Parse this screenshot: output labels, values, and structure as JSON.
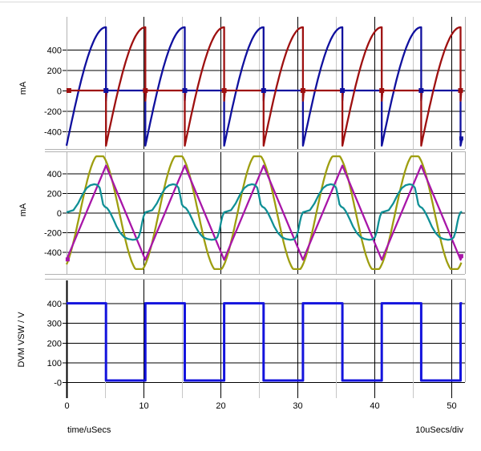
{
  "x_axis": {
    "title": "time/uSecs",
    "per_div": "10uSecs/div",
    "unit": "uSecs",
    "range_us": [
      0,
      51.4
    ],
    "major_ticks": [
      {
        "value": 0,
        "label": "0"
      },
      {
        "value": 10,
        "label": "10"
      },
      {
        "value": 20,
        "label": "20"
      },
      {
        "value": 30,
        "label": "30"
      },
      {
        "value": 40,
        "label": "40"
      },
      {
        "value": 50,
        "label": "50"
      }
    ],
    "minor_tick_values": [
      5,
      15,
      25,
      35,
      45
    ]
  },
  "chart_data": [
    {
      "id": "plot1",
      "type": "line",
      "ylabel": "mA",
      "y_unit": "mA",
      "y_tick_values": [
        400,
        200,
        0,
        -200,
        -400
      ],
      "y_tick_labels": [
        "400",
        "200",
        "0",
        "-200",
        "-400"
      ],
      "period_us": 10.24,
      "half_period_us": 5.12,
      "grid": "on",
      "series": [
        {
          "name": "dark-blue-trace",
          "color": "#10109e",
          "shape": "halfwave",
          "rise_phase": "even",
          "idle_mA": 0,
          "start_mA": -540,
          "peak_mA": 620,
          "undershoot_mA": -100
        },
        {
          "name": "dark-red-trace",
          "color": "#9e1010",
          "shape": "halfwave",
          "rise_phase": "odd",
          "idle_mA": 0,
          "start_mA": -540,
          "peak_mA": 620,
          "undershoot_mA": -100
        }
      ]
    },
    {
      "id": "plot2",
      "type": "line",
      "ylabel": "mA",
      "y_unit": "mA",
      "y_tick_values": [
        400,
        200,
        0,
        -200,
        -400
      ],
      "y_tick_labels": [
        "400",
        "200",
        "0",
        "-200",
        "-400"
      ],
      "period_us": 10.24,
      "grid": "on",
      "series": [
        {
          "name": "olive-trace",
          "color": "#9e9e10",
          "shape": "clipped-sine",
          "amplitude_mA": 600,
          "clip_mA": 575,
          "zero_cross_us": 1.75,
          "period_us": 10.24
        },
        {
          "name": "magenta-trace",
          "color": "#a816a8",
          "shape": "triangle",
          "min_mA": -480,
          "peak_mA": 480,
          "period_us": 10.24
        },
        {
          "name": "teal-trace",
          "color": "#109096",
          "shape": "periodic-points",
          "period_us": 10.24,
          "points_us_mA": [
            [
              0,
              4
            ],
            [
              0.9,
              25
            ],
            [
              1.5,
              95
            ],
            [
              2.1,
              190
            ],
            [
              2.6,
              250
            ],
            [
              3.1,
              280
            ],
            [
              3.6,
              290
            ],
            [
              4.0,
              283
            ],
            [
              4.3,
              255
            ],
            [
              4.55,
              165
            ],
            [
              4.75,
              85
            ],
            [
              4.95,
              62
            ],
            [
              5.25,
              48
            ],
            [
              5.5,
              22
            ],
            [
              5.75,
              -12
            ],
            [
              6.1,
              -70
            ],
            [
              6.5,
              -140
            ],
            [
              7.0,
              -207
            ],
            [
              7.5,
              -250
            ],
            [
              8.0,
              -268
            ],
            [
              8.6,
              -277
            ],
            [
              9.05,
              -272
            ],
            [
              9.35,
              -250
            ],
            [
              9.6,
              -190
            ],
            [
              9.85,
              -90
            ],
            [
              10.02,
              -35
            ],
            [
              10.24,
              4
            ]
          ]
        }
      ]
    },
    {
      "id": "plot3",
      "type": "line",
      "ylabel": "DVM VSW / V",
      "y_unit": "V",
      "y_tick_values": [
        400,
        300,
        200,
        100,
        0
      ],
      "y_tick_labels": [
        "400",
        "300",
        "200",
        "100",
        "-0"
      ],
      "period_us": 10.24,
      "grid": "on",
      "series": [
        {
          "name": "blue-square-trace",
          "color": "#1414dd",
          "shape": "square",
          "high_V": 400,
          "low_V": 8,
          "high_phase": "even",
          "period_us": 10.24
        }
      ]
    }
  ],
  "colors": {
    "grid_major": "#000000",
    "grid_minor": "#c6c6c6",
    "plot_border": "#b2b2b2",
    "axis_black": "#000000",
    "background": "#ffffff",
    "text": "#000000"
  }
}
